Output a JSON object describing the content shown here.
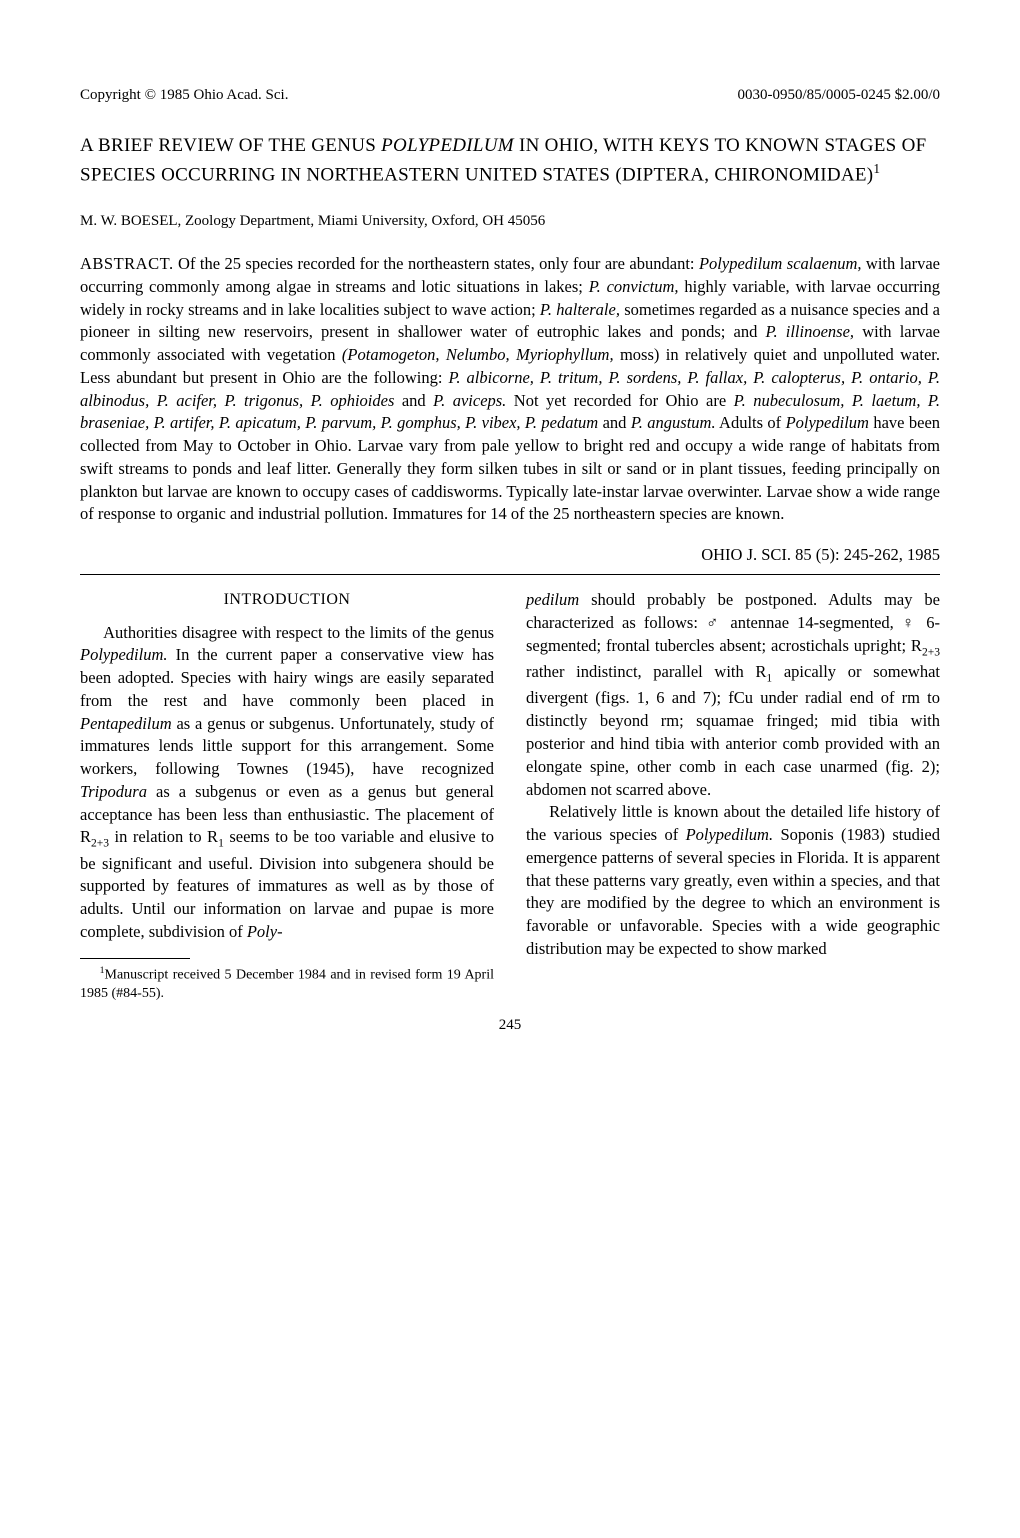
{
  "header": {
    "copyright": "Copyright © 1985 Ohio Acad. Sci.",
    "issn": "0030-0950/85/0005-0245 $2.00/0"
  },
  "title": {
    "line1": "A BRIEF REVIEW OF THE GENUS ",
    "genus": "POLYPEDILUM",
    "line1_after": " IN OHIO, WITH KEYS TO KNOWN STAGES OF SPECIES OCCURRING IN NORTHEASTERN UNITED STATES (DIPTERA, CHIRONOMIDAE)",
    "superscript": "1"
  },
  "author": "M. W. BOESEL, Zoology Department, Miami University, Oxford, OH 45056",
  "abstract": {
    "label": "ABSTRACT.",
    "text_segments": [
      {
        "t": "    Of the 25 species recorded for the northeastern states, only four are abundant: "
      },
      {
        "t": "Polypedilum scalaenum,",
        "i": true
      },
      {
        "t": " with larvae occurring commonly among algae in streams and lotic situations in lakes; "
      },
      {
        "t": "P. convictum,",
        "i": true
      },
      {
        "t": " highly variable, with larvae occurring widely in rocky streams and in lake localities subject to wave action; "
      },
      {
        "t": "P. halterale,",
        "i": true
      },
      {
        "t": " sometimes regarded as a nuisance species and a pioneer in silting new reservoirs, present in shallower water of eutrophic lakes and ponds; and "
      },
      {
        "t": "P. illinoense,",
        "i": true
      },
      {
        "t": " with larvae commonly associated with vegetation "
      },
      {
        "t": "(Potamogeton, Nelumbo, Myriophyllum,",
        "i": true
      },
      {
        "t": " moss) in relatively quiet and unpolluted water. Less abundant but present in Ohio are the following: "
      },
      {
        "t": "P. albicorne, P. tritum, P. sordens, P. fallax, P. calopterus, P. ontario, P. albinodus, P. acifer, P. trigonus, P. ophioides",
        "i": true
      },
      {
        "t": " and "
      },
      {
        "t": "P. aviceps.",
        "i": true
      },
      {
        "t": " Not yet recorded for Ohio are "
      },
      {
        "t": "P. nubeculosum, P. laetum, P. braseniae, P. artifer, P. apicatum, P. parvum, P. gomphus, P. vibex, P. pedatum",
        "i": true
      },
      {
        "t": " and "
      },
      {
        "t": "P. angustum.",
        "i": true
      },
      {
        "t": " Adults of "
      },
      {
        "t": "Polypedilum",
        "i": true
      },
      {
        "t": " have been collected from May to October in Ohio. Larvae vary from pale yellow to bright red and occupy a wide range of habitats from swift streams to ponds and leaf litter. Generally they form silken tubes in silt or sand or in plant tissues, feeding principally on plankton but larvae are known to occupy cases of caddisworms. Typically late-instar larvae overwinter. Larvae show a wide range of response to organic and industrial pollution. Immatures for 14 of the 25 northeastern species are known."
      }
    ]
  },
  "citation": "OHIO J. SCI. 85 (5): 245-262, 1985",
  "body": {
    "section_heading": "INTRODUCTION",
    "left_paragraphs": [
      [
        {
          "t": "Authorities disagree with respect to the limits of the genus "
        },
        {
          "t": "Polypedilum.",
          "i": true
        },
        {
          "t": " In the current paper a conservative view has been adopted. Species with hairy wings are easily separated from the rest and have commonly been placed in "
        },
        {
          "t": "Pentapedilum",
          "i": true
        },
        {
          "t": " as a genus or subgenus. Unfortunately, study of immatures lends little support for this arrangement. Some workers, following Townes (1945), have recognized "
        },
        {
          "t": "Tripodura",
          "i": true
        },
        {
          "t": " as a subgenus or even as a genus but general acceptance has been less than enthusiastic. The placement of R"
        },
        {
          "t": "2+3",
          "sub": true
        },
        {
          "t": " in relation to R"
        },
        {
          "t": "1",
          "sub": true
        },
        {
          "t": " seems to be too variable and elusive to be significant and useful. Division into subgenera should be supported by features of immatures as well as by those of adults. Until our information on larvae and pupae is more complete, subdivision of "
        },
        {
          "t": "Poly-",
          "i": true
        }
      ]
    ],
    "right_paragraphs": [
      [
        {
          "t": "pedilum",
          "i": true
        },
        {
          "t": " should probably be postponed. Adults may be characterized as follows: ♂ antennae 14-segmented, ♀ 6-segmented; frontal tubercles absent; acrostichals upright; R"
        },
        {
          "t": "2+3",
          "sub": true
        },
        {
          "t": " rather indistinct, parallel with R"
        },
        {
          "t": "1",
          "sub": true
        },
        {
          "t": " apically or somewhat divergent (figs. 1, 6 and 7); fCu under radial end of rm to distinctly beyond rm; squamae fringed; mid tibia with posterior and hind tibia with anterior comb provided with an elongate spine, other comb in each case unarmed (fig. 2); abdomen not scarred above."
        }
      ],
      [
        {
          "t": "Relatively little is known about the detailed life history of the various species of "
        },
        {
          "t": "Polypedilum.",
          "i": true
        },
        {
          "t": " Soponis (1983) studied emergence patterns of several species in Florida. It is apparent that these patterns vary greatly, even within a species, and that they are modified by the degree to which an environment is favorable or unfavorable. Species with a wide geographic distribution may be expected to show marked"
        }
      ]
    ]
  },
  "footnote": {
    "superscript": "1",
    "text": "Manuscript received 5 December 1984 and in revised form 19 April 1985 (#84-55)."
  },
  "page_number": "245"
}
